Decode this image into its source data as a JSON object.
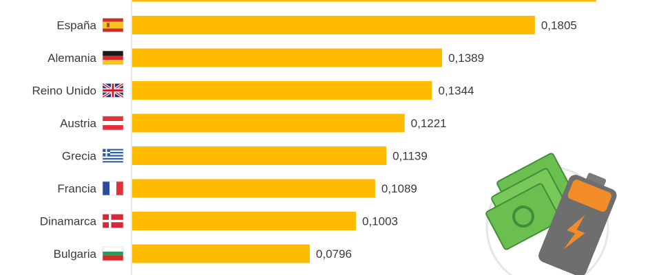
{
  "chart_data": {
    "type": "bar",
    "orientation": "horizontal",
    "bar_color": "#FFBB00",
    "categories": [
      "",
      "España",
      "Alemania",
      "Reino Unido",
      "Austria",
      "Grecia",
      "Francia",
      "Dinamarca",
      "Bulgaria"
    ],
    "flags": [
      "flag-icon-belgium",
      "flag-icon-spain",
      "flag-icon-germany",
      "flag-icon-uk",
      "flag-icon-austria",
      "flag-icon-greece",
      "flag-icon-france",
      "flag-icon-denmark",
      "flag-icon-bulgaria"
    ],
    "values": [
      0.208,
      0.1805,
      0.1389,
      0.1344,
      0.1221,
      0.1139,
      0.1089,
      0.1003,
      0.0796
    ],
    "value_labels": [
      "",
      "0,1805",
      "0,1389",
      "0,1344",
      "0,1221",
      "0,1139",
      "0,1089",
      "0,1003",
      "0,0796"
    ],
    "xlim": [
      0,
      0.2135
    ],
    "grid": false,
    "title": "",
    "xlabel": "",
    "ylabel": ""
  },
  "illustration": {
    "icons": [
      "money-bills-icon",
      "battery-bolt-icon"
    ],
    "colors": {
      "bills": "#6BBF4E",
      "bills_dark": "#3E8E3A",
      "battery_body": "#6E6E6E",
      "battery_top": "#F28C28",
      "bolt": "#F28C28"
    }
  }
}
